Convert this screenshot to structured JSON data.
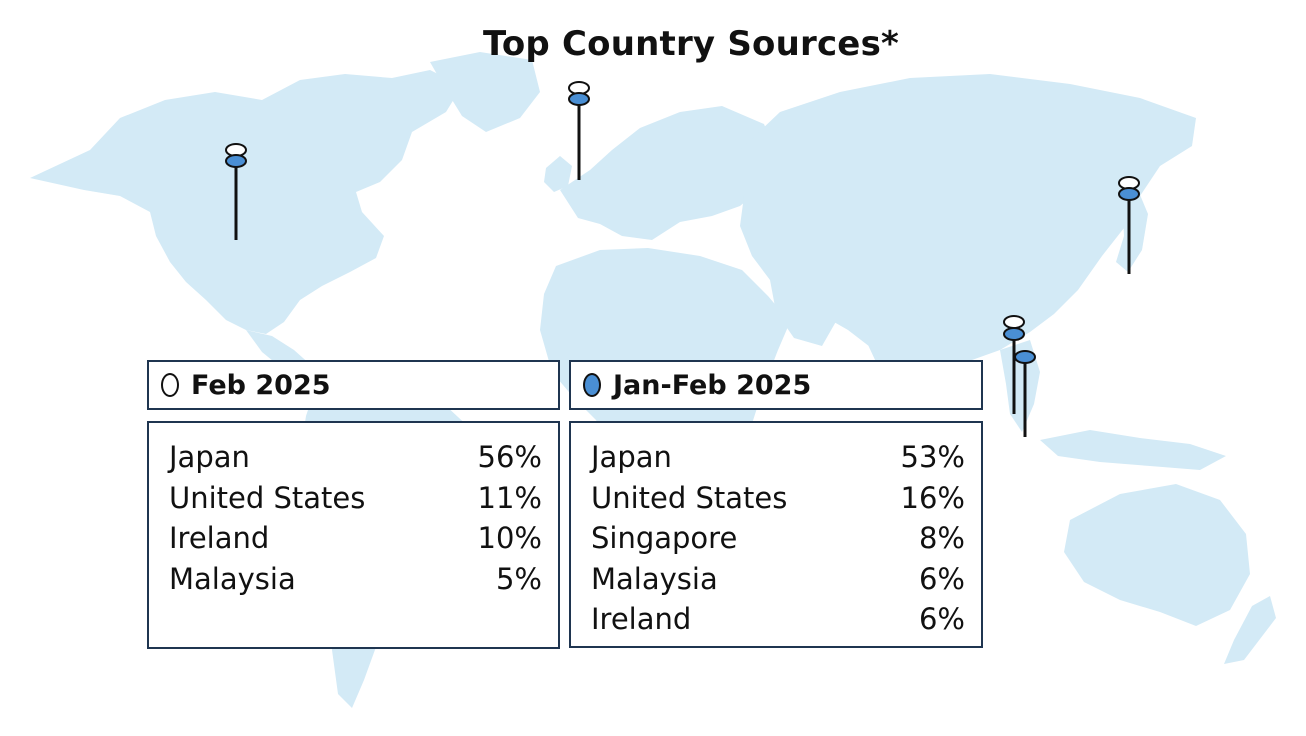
{
  "title": "Top Country Sources*",
  "colors": {
    "land": "#d3eaf6",
    "border": "#1f3550",
    "feb_marker": "#ffffff",
    "janfeb_marker": "#4a8fd4",
    "pin": "#111111"
  },
  "pins": [
    {
      "country": "United States",
      "feb": true,
      "janfeb": true
    },
    {
      "country": "Ireland",
      "feb": true,
      "janfeb": true
    },
    {
      "country": "Japan",
      "feb": true,
      "janfeb": true
    },
    {
      "country": "Malaysia",
      "feb": true,
      "janfeb": true
    },
    {
      "country": "Singapore",
      "feb": false,
      "janfeb": true
    }
  ],
  "panels": [
    {
      "label": "Feb 2025",
      "marker": "hollow-oval",
      "rows": [
        {
          "country": "Japan",
          "pct": "56%"
        },
        {
          "country": "United States",
          "pct": "11%"
        },
        {
          "country": "Ireland",
          "pct": "10%"
        },
        {
          "country": "Malaysia",
          "pct": "5%"
        }
      ]
    },
    {
      "label": "Jan-Feb 2025",
      "marker": "filled-oval",
      "rows": [
        {
          "country": "Japan",
          "pct": "53%"
        },
        {
          "country": "United States",
          "pct": "16%"
        },
        {
          "country": "Singapore",
          "pct": "8%"
        },
        {
          "country": "Malaysia",
          "pct": "6%"
        },
        {
          "country": "Ireland",
          "pct": "6%"
        }
      ]
    }
  ]
}
